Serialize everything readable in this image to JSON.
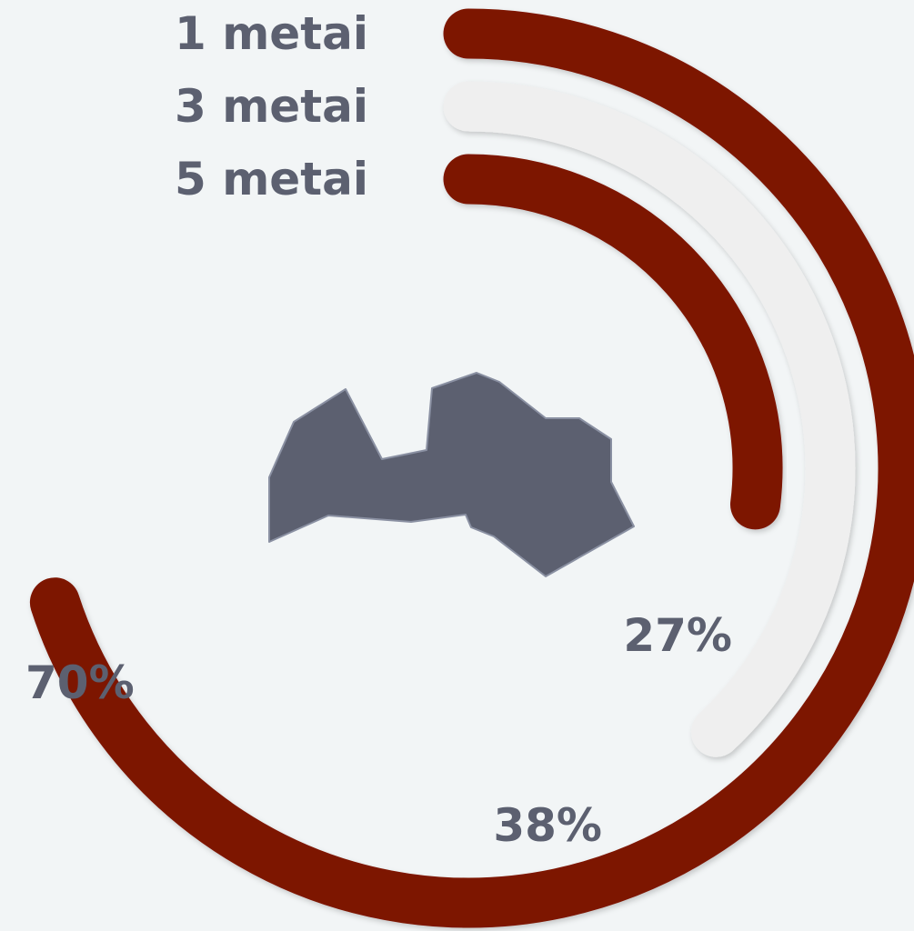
{
  "chart_data": {
    "type": "radial-bar",
    "series": [
      {
        "name": "1 metai",
        "value": 70,
        "value_label": "70%",
        "color": "#7d1306"
      },
      {
        "name": "3 metai",
        "value": 38,
        "value_label": "38%",
        "color": "#efefef"
      },
      {
        "name": "5 metai",
        "value": 27,
        "value_label": "27%",
        "color": "#7d1306"
      }
    ],
    "max": 100,
    "center_icon": "latvia-map-icon",
    "icon_color": "#5c6070",
    "background": "#f2f5f6"
  }
}
